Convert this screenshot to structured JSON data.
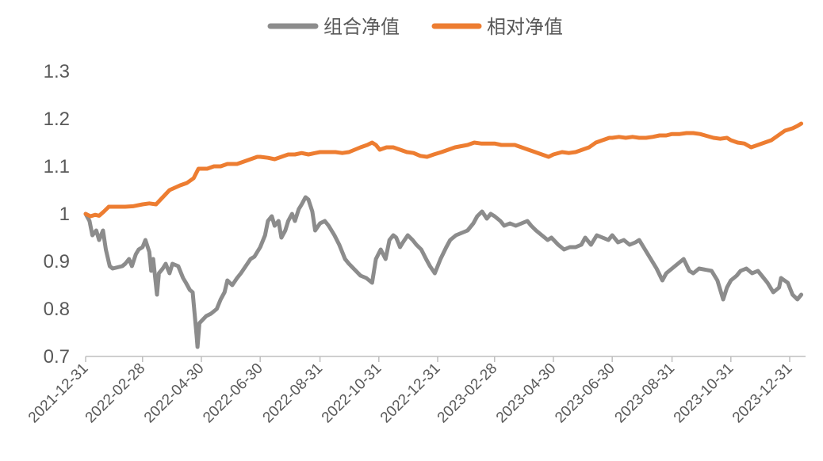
{
  "chart_data": {
    "type": "line",
    "ylim": [
      0.7,
      1.3
    ],
    "yticks": [
      "1.3",
      "1.2",
      "1.1",
      "1",
      "0.9",
      "0.8",
      "0.7"
    ],
    "xticks": [
      "2021-12-31",
      "2022-02-28",
      "2022-04-30",
      "2022-06-30",
      "2022-08-31",
      "2022-10-31",
      "2022-12-31",
      "2023-02-28",
      "2023-04-30",
      "2023-06-30",
      "2023-08-31",
      "2023-10-31",
      "2023-12-31"
    ],
    "grid": false,
    "legend_position": "top",
    "series": [
      {
        "name": "组合净值",
        "color": "#8c8c8c",
        "values": [
          [
            "2021-12-31",
            1.0
          ],
          [
            "2022-01-04",
            0.985
          ],
          [
            "2022-01-07",
            0.955
          ],
          [
            "2022-01-11",
            0.965
          ],
          [
            "2022-01-14",
            0.945
          ],
          [
            "2022-01-18",
            0.965
          ],
          [
            "2022-01-21",
            0.925
          ],
          [
            "2022-01-25",
            0.89
          ],
          [
            "2022-01-28",
            0.885
          ],
          [
            "2022-02-07",
            0.89
          ],
          [
            "2022-02-10",
            0.895
          ],
          [
            "2022-02-14",
            0.905
          ],
          [
            "2022-02-17",
            0.89
          ],
          [
            "2022-02-21",
            0.915
          ],
          [
            "2022-02-24",
            0.925
          ],
          [
            "2022-02-28",
            0.93
          ],
          [
            "2022-03-03",
            0.945
          ],
          [
            "2022-03-07",
            0.92
          ],
          [
            "2022-03-09",
            0.88
          ],
          [
            "2022-03-11",
            0.905
          ],
          [
            "2022-03-15",
            0.83
          ],
          [
            "2022-03-17",
            0.875
          ],
          [
            "2022-03-21",
            0.885
          ],
          [
            "2022-03-24",
            0.895
          ],
          [
            "2022-03-28",
            0.875
          ],
          [
            "2022-03-31",
            0.895
          ],
          [
            "2022-04-06",
            0.89
          ],
          [
            "2022-04-11",
            0.865
          ],
          [
            "2022-04-14",
            0.855
          ],
          [
            "2022-04-18",
            0.84
          ],
          [
            "2022-04-21",
            0.835
          ],
          [
            "2022-04-25",
            0.745
          ],
          [
            "2022-04-26",
            0.72
          ],
          [
            "2022-04-28",
            0.77
          ],
          [
            "2022-05-05",
            0.785
          ],
          [
            "2022-05-10",
            0.79
          ],
          [
            "2022-05-16",
            0.8
          ],
          [
            "2022-05-20",
            0.82
          ],
          [
            "2022-05-24",
            0.835
          ],
          [
            "2022-05-27",
            0.86
          ],
          [
            "2022-06-01",
            0.85
          ],
          [
            "2022-06-06",
            0.865
          ],
          [
            "2022-06-10",
            0.875
          ],
          [
            "2022-06-15",
            0.89
          ],
          [
            "2022-06-20",
            0.905
          ],
          [
            "2022-06-24",
            0.91
          ],
          [
            "2022-06-30",
            0.93
          ],
          [
            "2022-07-05",
            0.955
          ],
          [
            "2022-07-08",
            0.985
          ],
          [
            "2022-07-12",
            0.995
          ],
          [
            "2022-07-15",
            0.975
          ],
          [
            "2022-07-19",
            0.985
          ],
          [
            "2022-07-22",
            0.95
          ],
          [
            "2022-07-26",
            0.965
          ],
          [
            "2022-07-29",
            0.985
          ],
          [
            "2022-08-02",
            1.0
          ],
          [
            "2022-08-05",
            0.985
          ],
          [
            "2022-08-09",
            1.01
          ],
          [
            "2022-08-12",
            1.02
          ],
          [
            "2022-08-16",
            1.035
          ],
          [
            "2022-08-19",
            1.03
          ],
          [
            "2022-08-23",
            1.005
          ],
          [
            "2022-08-26",
            0.965
          ],
          [
            "2022-08-31",
            0.98
          ],
          [
            "2022-09-05",
            0.985
          ],
          [
            "2022-09-09",
            0.975
          ],
          [
            "2022-09-15",
            0.955
          ],
          [
            "2022-09-20",
            0.935
          ],
          [
            "2022-09-26",
            0.905
          ],
          [
            "2022-09-30",
            0.895
          ],
          [
            "2022-10-12",
            0.87
          ],
          [
            "2022-10-18",
            0.865
          ],
          [
            "2022-10-24",
            0.855
          ],
          [
            "2022-10-28",
            0.905
          ],
          [
            "2022-11-02",
            0.925
          ],
          [
            "2022-11-07",
            0.905
          ],
          [
            "2022-11-11",
            0.945
          ],
          [
            "2022-11-15",
            0.955
          ],
          [
            "2022-11-18",
            0.95
          ],
          [
            "2022-11-22",
            0.93
          ],
          [
            "2022-11-25",
            0.94
          ],
          [
            "2022-11-30",
            0.955
          ],
          [
            "2022-12-05",
            0.945
          ],
          [
            "2022-12-09",
            0.935
          ],
          [
            "2022-12-14",
            0.925
          ],
          [
            "2022-12-19",
            0.905
          ],
          [
            "2022-12-23",
            0.89
          ],
          [
            "2022-12-28",
            0.875
          ],
          [
            "2023-01-03",
            0.905
          ],
          [
            "2023-01-09",
            0.93
          ],
          [
            "2023-01-13",
            0.945
          ],
          [
            "2023-01-19",
            0.955
          ],
          [
            "2023-01-31",
            0.965
          ],
          [
            "2023-02-06",
            0.98
          ],
          [
            "2023-02-10",
            0.995
          ],
          [
            "2023-02-15",
            1.005
          ],
          [
            "2023-02-20",
            0.99
          ],
          [
            "2023-02-24",
            1.0
          ],
          [
            "2023-02-28",
            0.995
          ],
          [
            "2023-03-06",
            0.985
          ],
          [
            "2023-03-10",
            0.975
          ],
          [
            "2023-03-16",
            0.98
          ],
          [
            "2023-03-22",
            0.975
          ],
          [
            "2023-03-28",
            0.98
          ],
          [
            "2023-04-03",
            0.985
          ],
          [
            "2023-04-07",
            0.975
          ],
          [
            "2023-04-12",
            0.965
          ],
          [
            "2023-04-18",
            0.955
          ],
          [
            "2023-04-24",
            0.945
          ],
          [
            "2023-04-28",
            0.95
          ],
          [
            "2023-05-05",
            0.935
          ],
          [
            "2023-05-11",
            0.925
          ],
          [
            "2023-05-17",
            0.93
          ],
          [
            "2023-05-23",
            0.93
          ],
          [
            "2023-05-29",
            0.935
          ],
          [
            "2023-06-02",
            0.95
          ],
          [
            "2023-06-08",
            0.935
          ],
          [
            "2023-06-14",
            0.955
          ],
          [
            "2023-06-20",
            0.95
          ],
          [
            "2023-06-26",
            0.945
          ],
          [
            "2023-06-30",
            0.955
          ],
          [
            "2023-07-06",
            0.94
          ],
          [
            "2023-07-12",
            0.945
          ],
          [
            "2023-07-18",
            0.935
          ],
          [
            "2023-07-24",
            0.94
          ],
          [
            "2023-07-28",
            0.945
          ],
          [
            "2023-08-03",
            0.925
          ],
          [
            "2023-08-09",
            0.905
          ],
          [
            "2023-08-15",
            0.885
          ],
          [
            "2023-08-21",
            0.86
          ],
          [
            "2023-08-25",
            0.875
          ],
          [
            "2023-08-31",
            0.885
          ],
          [
            "2023-09-06",
            0.895
          ],
          [
            "2023-09-12",
            0.905
          ],
          [
            "2023-09-18",
            0.88
          ],
          [
            "2023-09-22",
            0.875
          ],
          [
            "2023-09-28",
            0.885
          ],
          [
            "2023-10-11",
            0.88
          ],
          [
            "2023-10-17",
            0.86
          ],
          [
            "2023-10-23",
            0.82
          ],
          [
            "2023-10-27",
            0.845
          ],
          [
            "2023-10-31",
            0.86
          ],
          [
            "2023-11-06",
            0.87
          ],
          [
            "2023-11-10",
            0.88
          ],
          [
            "2023-11-16",
            0.885
          ],
          [
            "2023-11-22",
            0.875
          ],
          [
            "2023-11-28",
            0.88
          ],
          [
            "2023-12-04",
            0.865
          ],
          [
            "2023-12-08",
            0.855
          ],
          [
            "2023-12-14",
            0.835
          ],
          [
            "2023-12-20",
            0.845
          ],
          [
            "2023-12-22",
            0.865
          ],
          [
            "2023-12-29",
            0.855
          ],
          [
            "2024-01-03",
            0.83
          ],
          [
            "2024-01-08",
            0.82
          ],
          [
            "2024-01-12",
            0.83
          ]
        ]
      },
      {
        "name": "相对净值",
        "color": "#ed7d31",
        "values": [
          [
            "2021-12-31",
            1.0
          ],
          [
            "2022-01-05",
            0.995
          ],
          [
            "2022-01-10",
            0.998
          ],
          [
            "2022-01-14",
            0.996
          ],
          [
            "2022-01-19",
            1.005
          ],
          [
            "2022-01-24",
            1.015
          ],
          [
            "2022-01-28",
            1.015
          ],
          [
            "2022-02-10",
            1.015
          ],
          [
            "2022-02-18",
            1.016
          ],
          [
            "2022-02-28",
            1.02
          ],
          [
            "2022-03-07",
            1.022
          ],
          [
            "2022-03-14",
            1.02
          ],
          [
            "2022-03-21",
            1.035
          ],
          [
            "2022-03-28",
            1.05
          ],
          [
            "2022-04-08",
            1.06
          ],
          [
            "2022-04-15",
            1.065
          ],
          [
            "2022-04-22",
            1.075
          ],
          [
            "2022-04-27",
            1.095
          ],
          [
            "2022-05-06",
            1.095
          ],
          [
            "2022-05-13",
            1.1
          ],
          [
            "2022-05-20",
            1.1
          ],
          [
            "2022-05-27",
            1.105
          ],
          [
            "2022-06-06",
            1.105
          ],
          [
            "2022-06-13",
            1.11
          ],
          [
            "2022-06-20",
            1.115
          ],
          [
            "2022-06-27",
            1.12
          ],
          [
            "2022-06-30",
            1.12
          ],
          [
            "2022-07-08",
            1.118
          ],
          [
            "2022-07-15",
            1.115
          ],
          [
            "2022-07-22",
            1.12
          ],
          [
            "2022-07-29",
            1.125
          ],
          [
            "2022-08-05",
            1.125
          ],
          [
            "2022-08-12",
            1.128
          ],
          [
            "2022-08-19",
            1.125
          ],
          [
            "2022-08-26",
            1.128
          ],
          [
            "2022-08-31",
            1.13
          ],
          [
            "2022-09-09",
            1.13
          ],
          [
            "2022-09-16",
            1.13
          ],
          [
            "2022-09-23",
            1.128
          ],
          [
            "2022-09-30",
            1.13
          ],
          [
            "2022-10-12",
            1.14
          ],
          [
            "2022-10-19",
            1.145
          ],
          [
            "2022-10-24",
            1.15
          ],
          [
            "2022-10-28",
            1.145
          ],
          [
            "2022-11-01",
            1.135
          ],
          [
            "2022-11-08",
            1.14
          ],
          [
            "2022-11-15",
            1.14
          ],
          [
            "2022-11-22",
            1.135
          ],
          [
            "2022-11-29",
            1.13
          ],
          [
            "2022-12-06",
            1.128
          ],
          [
            "2022-12-13",
            1.122
          ],
          [
            "2022-12-20",
            1.12
          ],
          [
            "2022-12-27",
            1.125
          ],
          [
            "2023-01-04",
            1.13
          ],
          [
            "2023-01-11",
            1.135
          ],
          [
            "2023-01-18",
            1.14
          ],
          [
            "2023-01-31",
            1.145
          ],
          [
            "2023-02-07",
            1.15
          ],
          [
            "2023-02-14",
            1.148
          ],
          [
            "2023-02-21",
            1.148
          ],
          [
            "2023-02-28",
            1.148
          ],
          [
            "2023-03-07",
            1.145
          ],
          [
            "2023-03-14",
            1.145
          ],
          [
            "2023-03-21",
            1.145
          ],
          [
            "2023-03-28",
            1.14
          ],
          [
            "2023-04-04",
            1.135
          ],
          [
            "2023-04-11",
            1.13
          ],
          [
            "2023-04-18",
            1.125
          ],
          [
            "2023-04-25",
            1.12
          ],
          [
            "2023-04-30",
            1.125
          ],
          [
            "2023-05-09",
            1.13
          ],
          [
            "2023-05-16",
            1.128
          ],
          [
            "2023-05-23",
            1.13
          ],
          [
            "2023-05-30",
            1.135
          ],
          [
            "2023-06-06",
            1.14
          ],
          [
            "2023-06-13",
            1.15
          ],
          [
            "2023-06-20",
            1.155
          ],
          [
            "2023-06-27",
            1.16
          ],
          [
            "2023-06-30",
            1.16
          ],
          [
            "2023-07-07",
            1.162
          ],
          [
            "2023-07-14",
            1.16
          ],
          [
            "2023-07-21",
            1.162
          ],
          [
            "2023-07-28",
            1.16
          ],
          [
            "2023-08-04",
            1.16
          ],
          [
            "2023-08-11",
            1.162
          ],
          [
            "2023-08-18",
            1.165
          ],
          [
            "2023-08-25",
            1.165
          ],
          [
            "2023-08-31",
            1.168
          ],
          [
            "2023-09-08",
            1.168
          ],
          [
            "2023-09-15",
            1.17
          ],
          [
            "2023-09-22",
            1.17
          ],
          [
            "2023-09-29",
            1.168
          ],
          [
            "2023-10-13",
            1.16
          ],
          [
            "2023-10-20",
            1.158
          ],
          [
            "2023-10-27",
            1.16
          ],
          [
            "2023-10-31",
            1.155
          ],
          [
            "2023-11-07",
            1.15
          ],
          [
            "2023-11-14",
            1.148
          ],
          [
            "2023-11-21",
            1.14
          ],
          [
            "2023-11-28",
            1.145
          ],
          [
            "2023-12-05",
            1.15
          ],
          [
            "2023-12-12",
            1.155
          ],
          [
            "2023-12-19",
            1.165
          ],
          [
            "2023-12-26",
            1.175
          ],
          [
            "2024-01-03",
            1.18
          ],
          [
            "2024-01-08",
            1.185
          ],
          [
            "2024-01-12",
            1.19
          ]
        ]
      }
    ]
  }
}
